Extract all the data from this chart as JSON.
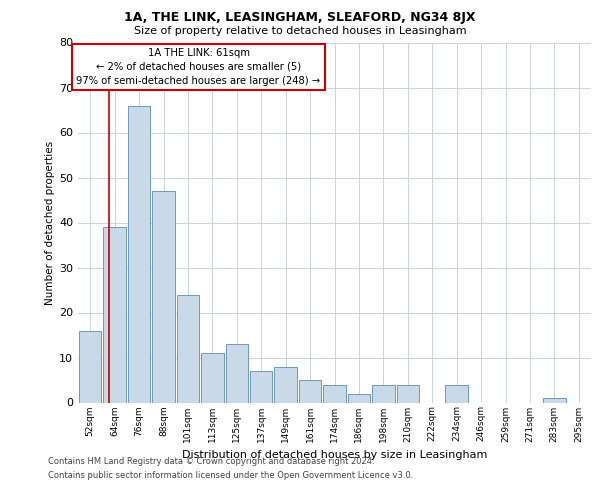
{
  "title_line1": "1A, THE LINK, LEASINGHAM, SLEAFORD, NG34 8JX",
  "title_line2": "Size of property relative to detached houses in Leasingham",
  "xlabel": "Distribution of detached houses by size in Leasingham",
  "ylabel": "Number of detached properties",
  "bar_labels": [
    "52sqm",
    "64sqm",
    "76sqm",
    "88sqm",
    "101sqm",
    "113sqm",
    "125sqm",
    "137sqm",
    "149sqm",
    "161sqm",
    "174sqm",
    "186sqm",
    "198sqm",
    "210sqm",
    "222sqm",
    "234sqm",
    "246sqm",
    "259sqm",
    "271sqm",
    "283sqm",
    "295sqm"
  ],
  "bar_values": [
    16,
    39,
    66,
    47,
    24,
    11,
    13,
    7,
    8,
    5,
    4,
    2,
    4,
    4,
    0,
    4,
    0,
    0,
    0,
    1,
    0
  ],
  "bar_color": "#c9d9e8",
  "bar_edge_color": "#5b8db8",
  "annotation_line1": "1A THE LINK: 61sqm",
  "annotation_line2": "← 2% of detached houses are smaller (5)",
  "annotation_line3": "97% of semi-detached houses are larger (248) →",
  "annotation_box_facecolor": "#ffffff",
  "annotation_box_edgecolor": "#cc0000",
  "vline_color": "#cc0000",
  "vline_x": 0.75,
  "ylim": [
    0,
    80
  ],
  "yticks": [
    0,
    10,
    20,
    30,
    40,
    50,
    60,
    70,
    80
  ],
  "footer_line1": "Contains HM Land Registry data © Crown copyright and database right 2024.",
  "footer_line2": "Contains public sector information licensed under the Open Government Licence v3.0.",
  "bg_color": "#ffffff",
  "grid_color": "#c8d4e0"
}
